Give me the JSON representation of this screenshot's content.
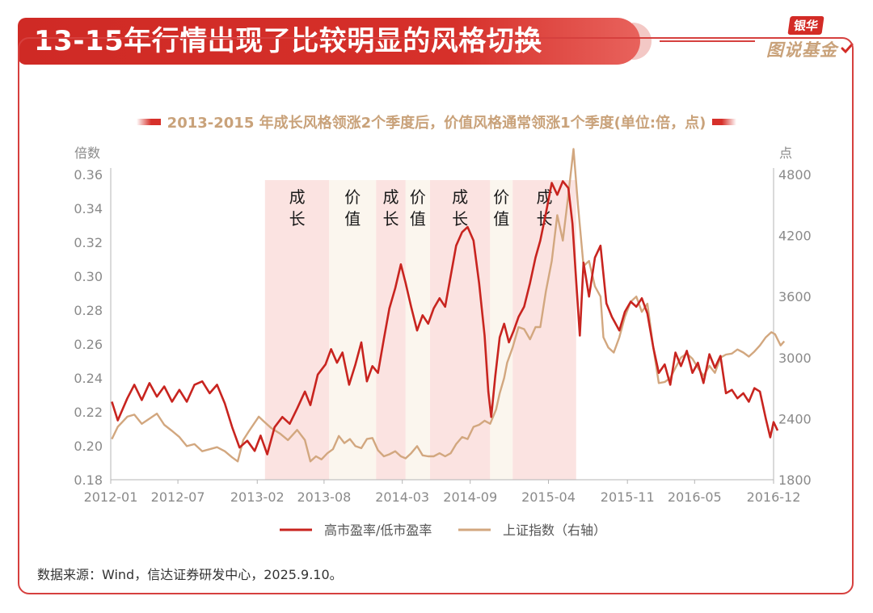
{
  "header": {
    "title": "13-15年行情出现了比较明显的风格切换",
    "logo_top": "银华",
    "logo_bottom": "图说基金"
  },
  "chart_data": {
    "type": "line",
    "title": "2013-2015 年成长风格领涨2个季度后，价值风格通常领涨1个季度(单位:倍，点)",
    "y_left_label": "倍数",
    "y_right_label": "点",
    "y_left_ticks": [
      "0.36",
      "0.34",
      "0.32",
      "0.30",
      "0.28",
      "0.26",
      "0.24",
      "0.22",
      "0.20",
      "0.18"
    ],
    "y_right_ticks": [
      "4800",
      "4200",
      "3600",
      "3000",
      "2400",
      "1800"
    ],
    "ylim_left": [
      0.18,
      0.36
    ],
    "ylim_right": [
      1800,
      4800
    ],
    "x_ticks": [
      "2012-01",
      "2012-07",
      "2013-02",
      "2013-08",
      "2014-03",
      "2014-09",
      "2015-04",
      "2015-11",
      "2016-05",
      "2016-12"
    ],
    "x_range": [
      "2012-01",
      "2016-12"
    ],
    "periods": [
      {
        "start": "2013-02-22",
        "end": "2013-08-15",
        "label": "成长",
        "style": "growth"
      },
      {
        "start": "2013-08-15",
        "end": "2013-12-20",
        "label": "价值",
        "style": "value"
      },
      {
        "start": "2013-12-20",
        "end": "2014-03-10",
        "label": "成长",
        "style": "growth"
      },
      {
        "start": "2014-03-10",
        "end": "2014-05-15",
        "label": "价值",
        "style": "value"
      },
      {
        "start": "2014-05-15",
        "end": "2014-10-25",
        "label": "成长",
        "style": "growth"
      },
      {
        "start": "2014-10-25",
        "end": "2014-12-25",
        "label": "价值",
        "style": "value"
      },
      {
        "start": "2014-12-25",
        "end": "2015-06-15",
        "label": "成长",
        "style": "growth"
      }
    ],
    "series": [
      {
        "name": "高市盈率/低市盈率",
        "axis": "left",
        "color": "#c8241f",
        "points": [
          [
            "2012-01-04",
            0.226
          ],
          [
            "2012-01-20",
            0.215
          ],
          [
            "2012-02-15",
            0.228
          ],
          [
            "2012-03-05",
            0.236
          ],
          [
            "2012-03-25",
            0.227
          ],
          [
            "2012-04-15",
            0.237
          ],
          [
            "2012-05-05",
            0.229
          ],
          [
            "2012-05-25",
            0.235
          ],
          [
            "2012-06-15",
            0.226
          ],
          [
            "2012-07-05",
            0.233
          ],
          [
            "2012-07-25",
            0.226
          ],
          [
            "2012-08-15",
            0.236
          ],
          [
            "2012-09-05",
            0.238
          ],
          [
            "2012-09-25",
            0.231
          ],
          [
            "2012-10-15",
            0.236
          ],
          [
            "2012-11-05",
            0.225
          ],
          [
            "2012-11-25",
            0.211
          ],
          [
            "2012-12-15",
            0.199
          ],
          [
            "2013-01-05",
            0.203
          ],
          [
            "2013-01-25",
            0.197
          ],
          [
            "2013-02-10",
            0.206
          ],
          [
            "2013-02-28",
            0.195
          ],
          [
            "2013-03-20",
            0.211
          ],
          [
            "2013-04-10",
            0.217
          ],
          [
            "2013-04-30",
            0.213
          ],
          [
            "2013-05-20",
            0.222
          ],
          [
            "2013-06-10",
            0.232
          ],
          [
            "2013-06-25",
            0.224
          ],
          [
            "2013-07-15",
            0.242
          ],
          [
            "2013-08-05",
            0.248
          ],
          [
            "2013-08-20",
            0.257
          ],
          [
            "2013-09-05",
            0.249
          ],
          [
            "2013-09-20",
            0.255
          ],
          [
            "2013-10-08",
            0.236
          ],
          [
            "2013-10-25",
            0.248
          ],
          [
            "2013-11-10",
            0.261
          ],
          [
            "2013-11-25",
            0.238
          ],
          [
            "2013-12-10",
            0.247
          ],
          [
            "2013-12-25",
            0.243
          ],
          [
            "2014-01-10",
            0.263
          ],
          [
            "2014-01-25",
            0.281
          ],
          [
            "2014-02-10",
            0.293
          ],
          [
            "2014-02-25",
            0.307
          ],
          [
            "2014-03-10",
            0.296
          ],
          [
            "2014-03-25",
            0.282
          ],
          [
            "2014-04-10",
            0.268
          ],
          [
            "2014-04-25",
            0.277
          ],
          [
            "2014-05-10",
            0.272
          ],
          [
            "2014-05-25",
            0.281
          ],
          [
            "2014-06-10",
            0.287
          ],
          [
            "2014-06-25",
            0.282
          ],
          [
            "2014-07-10",
            0.3
          ],
          [
            "2014-07-25",
            0.318
          ],
          [
            "2014-08-10",
            0.326
          ],
          [
            "2014-08-25",
            0.329
          ],
          [
            "2014-09-10",
            0.321
          ],
          [
            "2014-09-25",
            0.296
          ],
          [
            "2014-10-10",
            0.265
          ],
          [
            "2014-10-20",
            0.232
          ],
          [
            "2014-10-28",
            0.217
          ],
          [
            "2014-11-08",
            0.241
          ],
          [
            "2014-11-20",
            0.264
          ],
          [
            "2014-12-02",
            0.272
          ],
          [
            "2014-12-15",
            0.261
          ],
          [
            "2014-12-28",
            0.268
          ],
          [
            "2015-01-10",
            0.276
          ],
          [
            "2015-01-25",
            0.282
          ],
          [
            "2015-02-10",
            0.296
          ],
          [
            "2015-02-25",
            0.311
          ],
          [
            "2015-03-10",
            0.321
          ],
          [
            "2015-03-25",
            0.337
          ],
          [
            "2015-04-10",
            0.355
          ],
          [
            "2015-04-25",
            0.348
          ],
          [
            "2015-05-10",
            0.356
          ],
          [
            "2015-05-25",
            0.352
          ],
          [
            "2015-06-05",
            0.331
          ],
          [
            "2015-06-15",
            0.298
          ],
          [
            "2015-06-25",
            0.265
          ],
          [
            "2015-07-05",
            0.308
          ],
          [
            "2015-07-20",
            0.288
          ],
          [
            "2015-08-05",
            0.311
          ],
          [
            "2015-08-20",
            0.318
          ],
          [
            "2015-09-05",
            0.284
          ],
          [
            "2015-09-20",
            0.276
          ],
          [
            "2015-10-10",
            0.268
          ],
          [
            "2015-10-25",
            0.279
          ],
          [
            "2015-11-10",
            0.285
          ],
          [
            "2015-11-25",
            0.282
          ],
          [
            "2015-12-10",
            0.287
          ],
          [
            "2015-12-25",
            0.278
          ],
          [
            "2016-01-10",
            0.258
          ],
          [
            "2016-01-25",
            0.243
          ],
          [
            "2016-02-10",
            0.248
          ],
          [
            "2016-02-25",
            0.236
          ],
          [
            "2016-03-10",
            0.255
          ],
          [
            "2016-03-25",
            0.247
          ],
          [
            "2016-04-10",
            0.256
          ],
          [
            "2016-04-25",
            0.243
          ],
          [
            "2016-05-10",
            0.249
          ],
          [
            "2016-05-25",
            0.237
          ],
          [
            "2016-06-10",
            0.254
          ],
          [
            "2016-06-25",
            0.246
          ],
          [
            "2016-07-10",
            0.253
          ],
          [
            "2016-07-25",
            0.231
          ],
          [
            "2016-08-10",
            0.233
          ],
          [
            "2016-08-25",
            0.228
          ],
          [
            "2016-09-10",
            0.231
          ],
          [
            "2016-09-25",
            0.226
          ],
          [
            "2016-10-10",
            0.234
          ],
          [
            "2016-10-25",
            0.232
          ],
          [
            "2016-11-10",
            0.216
          ],
          [
            "2016-11-22",
            0.205
          ],
          [
            "2016-12-01",
            0.214
          ],
          [
            "2016-12-12",
            0.209
          ]
        ]
      },
      {
        "name": "上证指数（右轴）",
        "axis": "right",
        "color": "#d2a77f",
        "points": [
          [
            "2012-01-04",
            2200
          ],
          [
            "2012-01-20",
            2320
          ],
          [
            "2012-02-15",
            2420
          ],
          [
            "2012-03-05",
            2440
          ],
          [
            "2012-03-25",
            2350
          ],
          [
            "2012-04-15",
            2400
          ],
          [
            "2012-05-05",
            2450
          ],
          [
            "2012-05-25",
            2340
          ],
          [
            "2012-06-15",
            2280
          ],
          [
            "2012-07-05",
            2220
          ],
          [
            "2012-07-25",
            2130
          ],
          [
            "2012-08-15",
            2150
          ],
          [
            "2012-09-05",
            2080
          ],
          [
            "2012-09-25",
            2100
          ],
          [
            "2012-10-15",
            2120
          ],
          [
            "2012-11-05",
            2080
          ],
          [
            "2012-11-25",
            2020
          ],
          [
            "2012-12-10",
            1980
          ],
          [
            "2012-12-25",
            2190
          ],
          [
            "2013-01-10",
            2280
          ],
          [
            "2013-02-05",
            2420
          ],
          [
            "2013-02-20",
            2370
          ],
          [
            "2013-03-10",
            2310
          ],
          [
            "2013-04-05",
            2250
          ],
          [
            "2013-04-25",
            2190
          ],
          [
            "2013-05-20",
            2290
          ],
          [
            "2013-06-10",
            2190
          ],
          [
            "2013-06-25",
            1980
          ],
          [
            "2013-07-10",
            2030
          ],
          [
            "2013-07-25",
            2000
          ],
          [
            "2013-08-10",
            2060
          ],
          [
            "2013-08-25",
            2100
          ],
          [
            "2013-09-10",
            2230
          ],
          [
            "2013-09-25",
            2160
          ],
          [
            "2013-10-10",
            2200
          ],
          [
            "2013-10-25",
            2130
          ],
          [
            "2013-11-10",
            2110
          ],
          [
            "2013-11-25",
            2200
          ],
          [
            "2013-12-10",
            2210
          ],
          [
            "2013-12-25",
            2090
          ],
          [
            "2014-01-10",
            2030
          ],
          [
            "2014-01-25",
            2050
          ],
          [
            "2014-02-10",
            2080
          ],
          [
            "2014-02-25",
            2030
          ],
          [
            "2014-03-10",
            2010
          ],
          [
            "2014-03-25",
            2060
          ],
          [
            "2014-04-10",
            2130
          ],
          [
            "2014-04-25",
            2040
          ],
          [
            "2014-05-10",
            2030
          ],
          [
            "2014-05-25",
            2030
          ],
          [
            "2014-06-10",
            2060
          ],
          [
            "2014-06-25",
            2030
          ],
          [
            "2014-07-10",
            2060
          ],
          [
            "2014-07-25",
            2150
          ],
          [
            "2014-08-10",
            2220
          ],
          [
            "2014-08-25",
            2200
          ],
          [
            "2014-09-10",
            2320
          ],
          [
            "2014-09-25",
            2340
          ],
          [
            "2014-10-10",
            2380
          ],
          [
            "2014-10-25",
            2350
          ],
          [
            "2014-11-10",
            2490
          ],
          [
            "2014-11-20",
            2650
          ],
          [
            "2014-12-02",
            2800
          ],
          [
            "2014-12-10",
            2950
          ],
          [
            "2014-12-25",
            3100
          ],
          [
            "2015-01-10",
            3300
          ],
          [
            "2015-01-25",
            3280
          ],
          [
            "2015-02-10",
            3180
          ],
          [
            "2015-02-25",
            3300
          ],
          [
            "2015-03-10",
            3300
          ],
          [
            "2015-03-25",
            3650
          ],
          [
            "2015-04-10",
            3950
          ],
          [
            "2015-04-25",
            4400
          ],
          [
            "2015-05-10",
            4150
          ],
          [
            "2015-05-25",
            4600
          ],
          [
            "2015-06-08",
            5050
          ],
          [
            "2015-06-20",
            4500
          ],
          [
            "2015-07-05",
            3900
          ],
          [
            "2015-07-20",
            3950
          ],
          [
            "2015-08-05",
            3700
          ],
          [
            "2015-08-20",
            3600
          ],
          [
            "2015-08-28",
            3200
          ],
          [
            "2015-09-10",
            3100
          ],
          [
            "2015-09-25",
            3050
          ],
          [
            "2015-10-10",
            3200
          ],
          [
            "2015-10-25",
            3400
          ],
          [
            "2015-11-10",
            3550
          ],
          [
            "2015-11-25",
            3600
          ],
          [
            "2015-12-10",
            3450
          ],
          [
            "2015-12-25",
            3530
          ],
          [
            "2016-01-10",
            3100
          ],
          [
            "2016-01-25",
            2750
          ],
          [
            "2016-02-10",
            2760
          ],
          [
            "2016-02-25",
            2800
          ],
          [
            "2016-03-10",
            2900
          ],
          [
            "2016-03-25",
            3000
          ],
          [
            "2016-04-10",
            3040
          ],
          [
            "2016-04-25",
            2990
          ],
          [
            "2016-05-10",
            2900
          ],
          [
            "2016-05-25",
            2820
          ],
          [
            "2016-06-10",
            2920
          ],
          [
            "2016-06-25",
            2850
          ],
          [
            "2016-07-10",
            3000
          ],
          [
            "2016-07-25",
            3030
          ],
          [
            "2016-08-10",
            3040
          ],
          [
            "2016-08-25",
            3080
          ],
          [
            "2016-09-10",
            3050
          ],
          [
            "2016-09-25",
            3010
          ],
          [
            "2016-10-10",
            3060
          ],
          [
            "2016-10-25",
            3120
          ],
          [
            "2016-11-10",
            3200
          ],
          [
            "2016-11-25",
            3250
          ],
          [
            "2016-12-05",
            3230
          ],
          [
            "2016-12-20",
            3120
          ],
          [
            "2016-12-30",
            3160
          ]
        ]
      }
    ]
  },
  "source": "数据来源：Wind，信达证券研发中心，2025.9.10。"
}
